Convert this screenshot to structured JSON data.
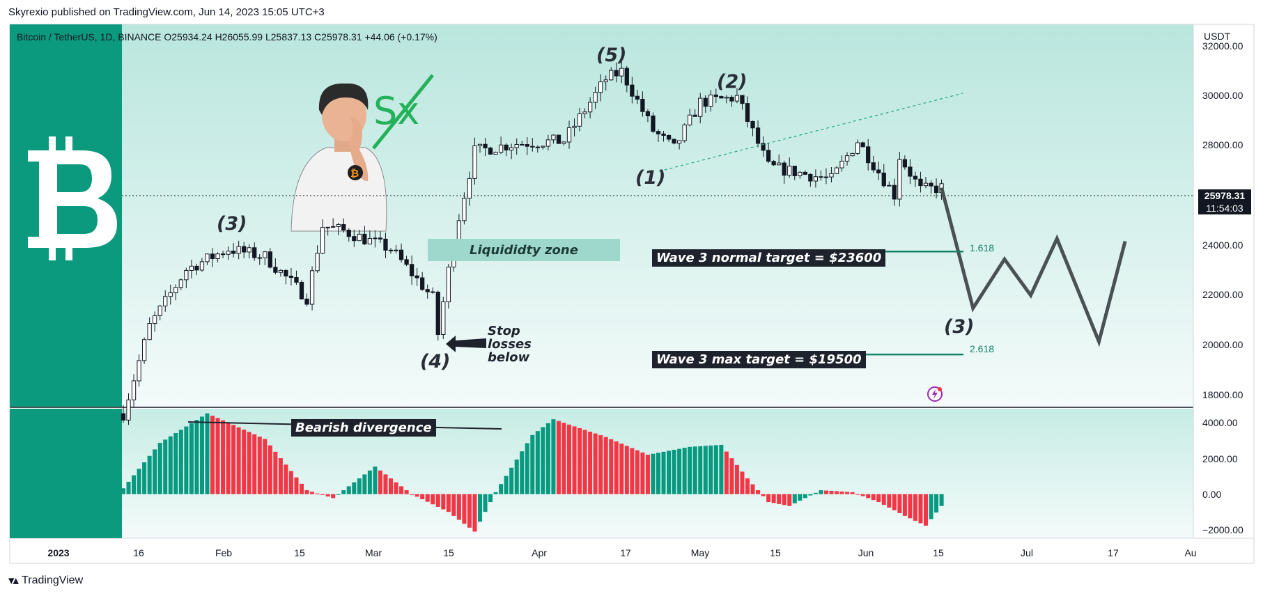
{
  "header": {
    "published": "Skyrexio published on TradingView.com, Jun 14, 2023 15:05 UTC+3"
  },
  "symbol_line": {
    "name": "Bitcoin / TetherUS, 1D, BINANCE",
    "open": "O25934.24",
    "high": "H26055.99",
    "low": "L25837.13",
    "close": "C25978.31",
    "change": "+44.06 (+0.17%)"
  },
  "price_axis": {
    "unit": "USDT",
    "ticks": [
      "32000.00",
      "30000.00",
      "28000.00",
      "24000.00",
      "22000.00",
      "20000.00",
      "18000.00"
    ],
    "current_price": "25978.31",
    "countdown": "11:54:03"
  },
  "indicator_axis": {
    "ticks": [
      "4000.00",
      "2000.00",
      "0.00",
      "−2000.00"
    ]
  },
  "time_axis": {
    "ticks": [
      "2023",
      "16",
      "Feb",
      "15",
      "Mar",
      "15",
      "Apr",
      "17",
      "May",
      "15",
      "Jun",
      "15",
      "Jul",
      "17",
      "Au"
    ]
  },
  "annotations": {
    "waves": [
      "(3)",
      "(4)",
      "(5)",
      "(1)",
      "(2)",
      "(3)"
    ],
    "liquidity_zone": "Liquididty zone",
    "stop_losses": "Stop losses below",
    "normal_target": "Wave 3 normal target = $23600",
    "max_target": "Wave 3 max target = $19500",
    "fib_1": "1.618",
    "fib_2": "2.618",
    "bearish_divergence": "Bearish divergence"
  },
  "logo_text": "Sx",
  "footer": {
    "brand": "TradingView"
  },
  "colors": {
    "up": "#089981",
    "down": "#f23645",
    "candle_body": "#ffffff",
    "candle_wick": "#131722",
    "brand_green": "#0b9a7d",
    "panel_top": "#b9e6de",
    "projection": "#4a5153"
  },
  "chart_data": {
    "type": "candlestick",
    "title": "Bitcoin / TetherUS, 1D, BINANCE",
    "y_unit": "USDT",
    "ylim": [
      17500,
      32300
    ],
    "x_start": "2023-01-09",
    "x_end": "2023-08-01",
    "key_price_path": [
      {
        "date": "2023-01-09",
        "close": 17200
      },
      {
        "date": "2023-01-14",
        "close": 20600
      },
      {
        "date": "2023-01-21",
        "close": 22800
      },
      {
        "date": "2023-01-29",
        "close": 23600
      },
      {
        "date": "2023-02-05",
        "close": 23300
      },
      {
        "date": "2023-02-13",
        "close": 21700
      },
      {
        "date": "2023-02-16",
        "close": 24500
      },
      {
        "date": "2023-02-20",
        "close": 24300
      },
      {
        "date": "2023-03-01",
        "close": 23600
      },
      {
        "date": "2023-03-09",
        "close": 21700
      },
      {
        "date": "2023-03-10",
        "close": 20300
      },
      {
        "date": "2023-03-13",
        "close": 24000
      },
      {
        "date": "2023-03-17",
        "close": 27400
      },
      {
        "date": "2023-03-25",
        "close": 27700
      },
      {
        "date": "2023-04-03",
        "close": 27800
      },
      {
        "date": "2023-04-11",
        "close": 30200
      },
      {
        "date": "2023-04-14",
        "close": 30500
      },
      {
        "date": "2023-04-20",
        "close": 28200
      },
      {
        "date": "2023-04-24",
        "close": 27500
      },
      {
        "date": "2023-04-29",
        "close": 29300
      },
      {
        "date": "2023-05-06",
        "close": 29500
      },
      {
        "date": "2023-05-12",
        "close": 26800
      },
      {
        "date": "2023-05-24",
        "close": 26300
      },
      {
        "date": "2023-05-29",
        "close": 27800
      },
      {
        "date": "2023-06-05",
        "close": 25700
      },
      {
        "date": "2023-06-06",
        "close": 27200
      },
      {
        "date": "2023-06-10",
        "close": 25900
      },
      {
        "date": "2023-06-14",
        "close": 25978.31
      }
    ],
    "projection": [
      {
        "date": "2023-06-14",
        "price": 25978
      },
      {
        "date": "2023-06-20",
        "price": 21300
      },
      {
        "date": "2023-06-26",
        "price": 23200
      },
      {
        "date": "2023-07-01",
        "price": 21800
      },
      {
        "date": "2023-07-06",
        "price": 24000
      },
      {
        "date": "2023-07-14",
        "price": 20000
      },
      {
        "date": "2023-07-19",
        "price": 23900
      }
    ],
    "levels": [
      {
        "label": "1.618",
        "price": 23500
      },
      {
        "label": "2.618",
        "price": 19500
      }
    ],
    "wave_labels": [
      {
        "label": "(3)",
        "date": "2023-01-30",
        "price": 24800
      },
      {
        "label": "(4)",
        "date": "2023-03-10",
        "price": 19000
      },
      {
        "label": "(5)",
        "date": "2023-04-14",
        "price": 31800
      },
      {
        "label": "(1)",
        "date": "2023-04-27",
        "price": 26400
      },
      {
        "label": "(2)",
        "date": "2023-05-08",
        "price": 30700
      },
      {
        "label": "(3)",
        "date": "2023-06-20",
        "price": 20600
      }
    ],
    "indicator": {
      "type": "histogram",
      "ylim": [
        -2200,
        4300
      ],
      "key_values": [
        {
          "date": "2023-01-09",
          "value": 300
        },
        {
          "date": "2023-01-16",
          "value": 2600
        },
        {
          "date": "2023-01-25",
          "value": 4100
        },
        {
          "date": "2023-02-05",
          "value": 2800
        },
        {
          "date": "2023-02-13",
          "value": 200
        },
        {
          "date": "2023-02-18",
          "value": -200
        },
        {
          "date": "2023-02-26",
          "value": 1400
        },
        {
          "date": "2023-03-05",
          "value": 0
        },
        {
          "date": "2023-03-12",
          "value": -900
        },
        {
          "date": "2023-03-17",
          "value": -1900
        },
        {
          "date": "2023-03-21",
          "value": 100
        },
        {
          "date": "2023-03-28",
          "value": 3000
        },
        {
          "date": "2023-04-01",
          "value": 3800
        },
        {
          "date": "2023-04-11",
          "value": 2900
        },
        {
          "date": "2023-04-19",
          "value": 2000
        },
        {
          "date": "2023-04-27",
          "value": 2400
        },
        {
          "date": "2023-05-03",
          "value": 2500
        },
        {
          "date": "2023-05-08",
          "value": 800
        },
        {
          "date": "2023-05-12",
          "value": -400
        },
        {
          "date": "2023-05-16",
          "value": -600
        },
        {
          "date": "2023-05-22",
          "value": 200
        },
        {
          "date": "2023-05-28",
          "value": 100
        },
        {
          "date": "2023-06-02",
          "value": -400
        },
        {
          "date": "2023-06-07",
          "value": -1100
        },
        {
          "date": "2023-06-11",
          "value": -1600
        },
        {
          "date": "2023-06-14",
          "value": -600
        }
      ]
    }
  }
}
